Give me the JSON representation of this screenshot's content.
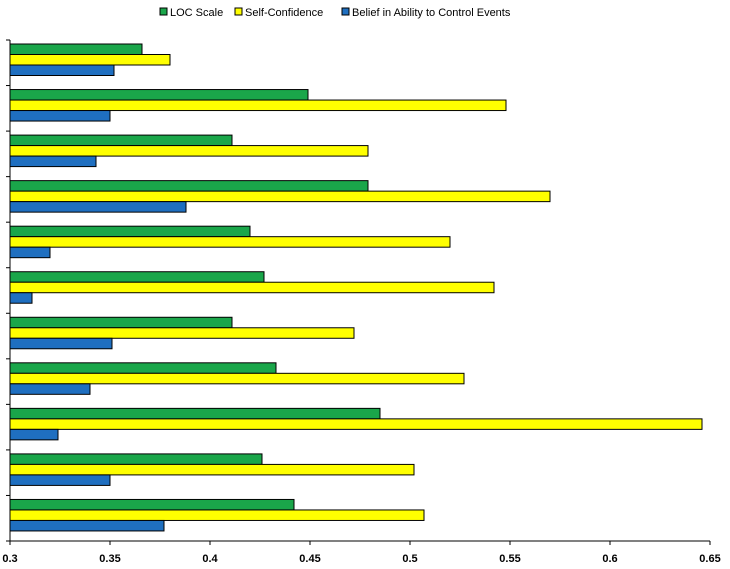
{
  "chart_data": {
    "type": "bar",
    "orientation": "horizontal",
    "title": "",
    "xlabel": "",
    "ylabel": "",
    "xlim": [
      0.3,
      0.65
    ],
    "x_ticks": [
      "0.3",
      "0.35",
      "0.4",
      "0.45",
      "0.5",
      "0.55",
      "0.6",
      "0.65"
    ],
    "grid": false,
    "legend_position": "top",
    "categories": [
      "",
      "",
      "",
      "",
      "",
      "",
      "",
      "",
      "",
      "",
      ""
    ],
    "series": [
      {
        "name": "LOC Scale",
        "color": "#1aa64a",
        "values": [
          0.366,
          0.449,
          0.411,
          0.479,
          0.42,
          0.427,
          0.411,
          0.433,
          0.485,
          0.426,
          0.442
        ]
      },
      {
        "name": "Self-Confidence",
        "color": "#ffff00",
        "values": [
          0.38,
          0.548,
          0.479,
          0.57,
          0.52,
          0.542,
          0.472,
          0.527,
          0.646,
          0.502,
          0.507
        ]
      },
      {
        "name": "Belief in Ability to Control Events",
        "color": "#1f6fc0",
        "values": [
          0.352,
          0.35,
          0.343,
          0.388,
          0.32,
          0.311,
          0.351,
          0.34,
          0.324,
          0.35,
          0.377
        ]
      }
    ]
  }
}
